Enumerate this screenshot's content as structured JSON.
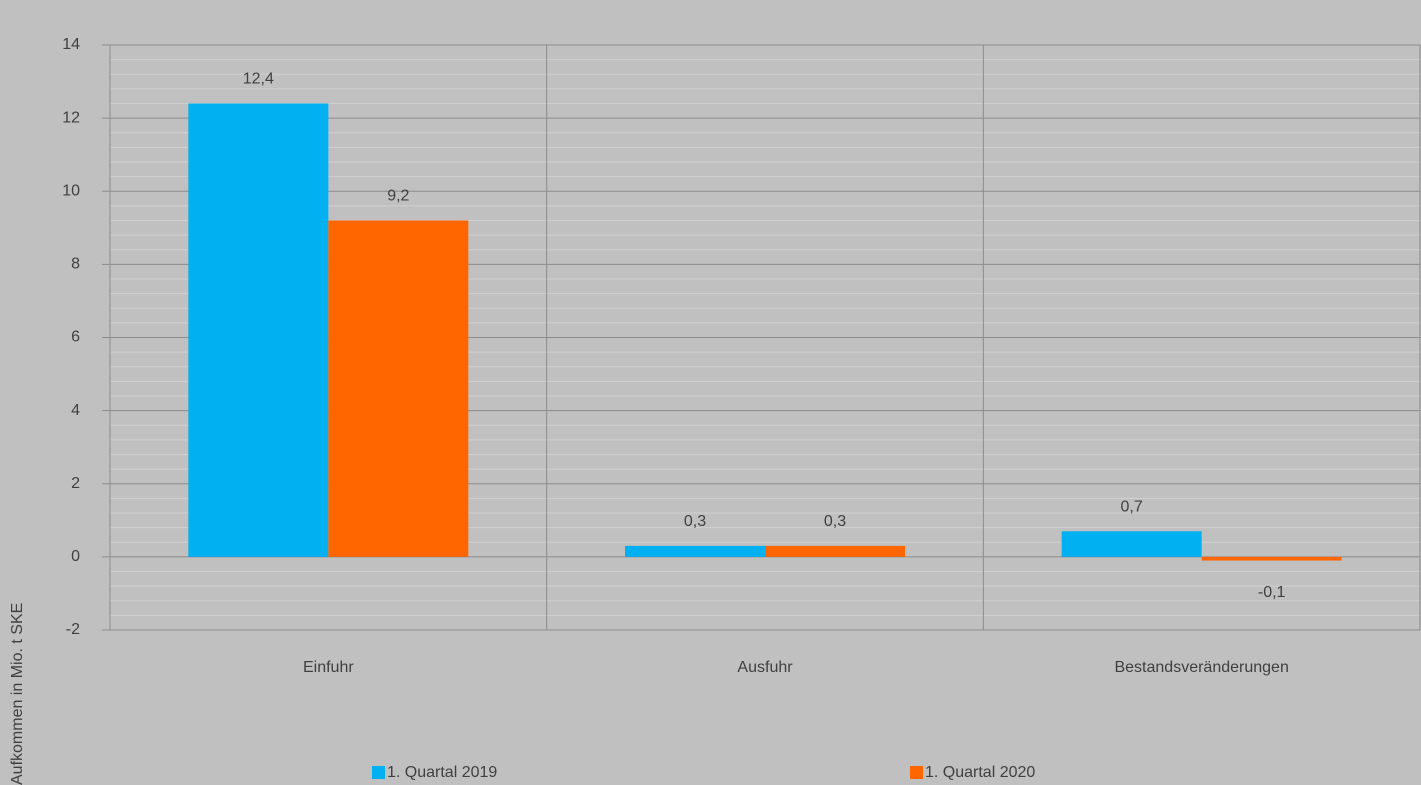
{
  "chart_data": {
    "type": "bar",
    "y_label": "Aufkommen  in Mio. t SKE",
    "categories": [
      "Einfuhr",
      "Ausfuhr",
      "Bestandsveränderungen"
    ],
    "series": [
      {
        "name": "1. Quartal 2019",
        "color": "#00b0f0",
        "values": [
          12.4,
          0.3,
          0.7
        ],
        "value_labels": [
          "12,4",
          "0,3",
          "0,7"
        ]
      },
      {
        "name": "1. Quartal 2020",
        "color": "#ff6600",
        "values": [
          9.2,
          0.3,
          -0.1
        ],
        "value_labels": [
          "9,2",
          "0,3",
          "-0,1"
        ]
      }
    ],
    "ylim": [
      -2,
      14
    ],
    "yticks": [
      -2,
      0,
      2,
      4,
      6,
      8,
      10,
      12,
      14
    ],
    "grid": true,
    "legend": "bottom"
  }
}
